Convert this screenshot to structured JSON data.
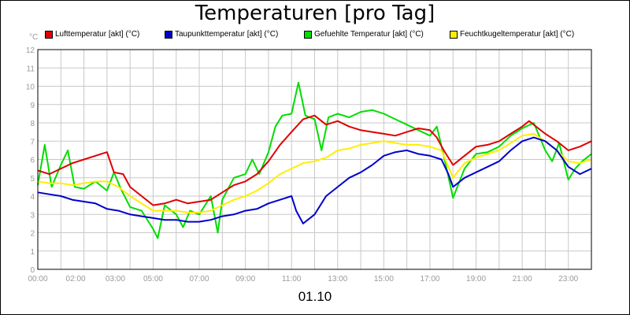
{
  "chart_data": {
    "type": "line",
    "title": "Temperaturen [pro Tag]",
    "unit": "°C",
    "xlabel": "01.10",
    "ylim": [
      0,
      12
    ],
    "y_ticks": [
      0,
      1,
      2,
      3,
      4,
      5,
      6,
      7,
      8,
      9,
      10,
      11,
      12
    ],
    "x_ticks": [
      "00:00",
      "02:00",
      "03:00",
      "05:00",
      "07:00",
      "09:00",
      "11:00",
      "13:00",
      "15:00",
      "17:00",
      "19:00",
      "21:00",
      "23:00"
    ],
    "x_tick_hours": [
      0,
      2,
      3,
      5,
      7,
      9,
      11,
      13,
      15,
      17,
      19,
      21,
      23
    ],
    "x_range_hours": [
      0,
      24
    ],
    "grid": true,
    "legend_position": "top",
    "series": [
      {
        "name": "Lufttemperatur [akt] (°C)",
        "color": "#e00000",
        "points": [
          [
            0,
            5.4
          ],
          [
            0.5,
            5.2
          ],
          [
            1,
            5.5
          ],
          [
            1.5,
            5.8
          ],
          [
            2,
            6.0
          ],
          [
            2.5,
            6.2
          ],
          [
            3,
            6.4
          ],
          [
            3.3,
            5.3
          ],
          [
            3.7,
            5.2
          ],
          [
            4,
            4.5
          ],
          [
            4.5,
            4.0
          ],
          [
            5,
            3.5
          ],
          [
            5.5,
            3.6
          ],
          [
            6,
            3.8
          ],
          [
            6.5,
            3.6
          ],
          [
            7,
            3.7
          ],
          [
            7.5,
            3.8
          ],
          [
            8,
            4.2
          ],
          [
            8.5,
            4.6
          ],
          [
            9,
            4.8
          ],
          [
            9.5,
            5.2
          ],
          [
            10,
            5.9
          ],
          [
            10.5,
            6.8
          ],
          [
            11,
            7.5
          ],
          [
            11.5,
            8.2
          ],
          [
            12,
            8.4
          ],
          [
            12.5,
            7.9
          ],
          [
            13,
            8.1
          ],
          [
            13.5,
            7.8
          ],
          [
            14,
            7.6
          ],
          [
            14.5,
            7.5
          ],
          [
            15,
            7.4
          ],
          [
            15.5,
            7.3
          ],
          [
            16,
            7.5
          ],
          [
            16.5,
            7.7
          ],
          [
            17,
            7.6
          ],
          [
            17.3,
            7.2
          ],
          [
            17.6,
            6.5
          ],
          [
            18,
            5.7
          ],
          [
            18.5,
            6.2
          ],
          [
            19,
            6.7
          ],
          [
            19.5,
            6.8
          ],
          [
            20,
            7.0
          ],
          [
            20.5,
            7.4
          ],
          [
            21,
            7.8
          ],
          [
            21.3,
            8.1
          ],
          [
            21.7,
            7.7
          ],
          [
            22,
            7.4
          ],
          [
            22.5,
            7.0
          ],
          [
            23,
            6.5
          ],
          [
            23.5,
            6.7
          ],
          [
            24,
            7.0
          ]
        ]
      },
      {
        "name": "Taupunkttemperatur [akt] (°C)",
        "color": "#0000cc",
        "points": [
          [
            0,
            4.2
          ],
          [
            0.5,
            4.1
          ],
          [
            1,
            4.0
          ],
          [
            1.5,
            3.8
          ],
          [
            2,
            3.7
          ],
          [
            2.5,
            3.6
          ],
          [
            3,
            3.3
          ],
          [
            3.5,
            3.2
          ],
          [
            4,
            3.0
          ],
          [
            4.5,
            2.9
          ],
          [
            5,
            2.8
          ],
          [
            5.5,
            2.7
          ],
          [
            6,
            2.7
          ],
          [
            6.5,
            2.6
          ],
          [
            7,
            2.6
          ],
          [
            7.5,
            2.7
          ],
          [
            8,
            2.9
          ],
          [
            8.5,
            3.0
          ],
          [
            9,
            3.2
          ],
          [
            9.5,
            3.3
          ],
          [
            10,
            3.6
          ],
          [
            10.5,
            3.8
          ],
          [
            11,
            4.0
          ],
          [
            11.2,
            3.2
          ],
          [
            11.5,
            2.5
          ],
          [
            12,
            3.0
          ],
          [
            12.5,
            4.0
          ],
          [
            13,
            4.5
          ],
          [
            13.5,
            5.0
          ],
          [
            14,
            5.3
          ],
          [
            14.5,
            5.7
          ],
          [
            15,
            6.2
          ],
          [
            15.5,
            6.4
          ],
          [
            16,
            6.5
          ],
          [
            16.5,
            6.3
          ],
          [
            17,
            6.2
          ],
          [
            17.5,
            6.0
          ],
          [
            17.8,
            5.2
          ],
          [
            18,
            4.5
          ],
          [
            18.5,
            5.0
          ],
          [
            19,
            5.3
          ],
          [
            19.5,
            5.6
          ],
          [
            20,
            5.9
          ],
          [
            20.5,
            6.5
          ],
          [
            21,
            7.0
          ],
          [
            21.5,
            7.2
          ],
          [
            22,
            7.0
          ],
          [
            22.5,
            6.5
          ],
          [
            23,
            5.6
          ],
          [
            23.5,
            5.2
          ],
          [
            24,
            5.5
          ]
        ]
      },
      {
        "name": "Gefuehlte Temperatur [akt] (°C)",
        "color": "#00dd00",
        "points": [
          [
            0,
            4.6
          ],
          [
            0.3,
            6.8
          ],
          [
            0.6,
            4.5
          ],
          [
            1,
            5.7
          ],
          [
            1.3,
            6.5
          ],
          [
            1.6,
            4.5
          ],
          [
            2,
            4.4
          ],
          [
            2.5,
            4.8
          ],
          [
            3,
            4.3
          ],
          [
            3.3,
            5.3
          ],
          [
            3.6,
            4.4
          ],
          [
            4,
            3.4
          ],
          [
            4.5,
            3.2
          ],
          [
            5,
            2.2
          ],
          [
            5.2,
            1.7
          ],
          [
            5.5,
            3.5
          ],
          [
            6,
            3.0
          ],
          [
            6.3,
            2.3
          ],
          [
            6.6,
            3.2
          ],
          [
            7,
            3.0
          ],
          [
            7.5,
            4.0
          ],
          [
            7.8,
            2.0
          ],
          [
            8,
            3.8
          ],
          [
            8.5,
            5.0
          ],
          [
            9,
            5.2
          ],
          [
            9.3,
            6.0
          ],
          [
            9.6,
            5.2
          ],
          [
            10,
            6.4
          ],
          [
            10.3,
            7.8
          ],
          [
            10.6,
            8.4
          ],
          [
            11,
            8.5
          ],
          [
            11.3,
            10.2
          ],
          [
            11.6,
            8.4
          ],
          [
            12,
            8.2
          ],
          [
            12.3,
            6.5
          ],
          [
            12.6,
            8.3
          ],
          [
            13,
            8.5
          ],
          [
            13.5,
            8.3
          ],
          [
            14,
            8.6
          ],
          [
            14.5,
            8.7
          ],
          [
            15,
            8.5
          ],
          [
            15.5,
            8.2
          ],
          [
            16,
            7.9
          ],
          [
            16.5,
            7.6
          ],
          [
            17,
            7.3
          ],
          [
            17.3,
            7.8
          ],
          [
            17.6,
            6.2
          ],
          [
            18,
            3.9
          ],
          [
            18.5,
            5.5
          ],
          [
            19,
            6.3
          ],
          [
            19.5,
            6.4
          ],
          [
            20,
            6.7
          ],
          [
            20.5,
            7.3
          ],
          [
            21,
            7.7
          ],
          [
            21.5,
            8.0
          ],
          [
            22,
            6.5
          ],
          [
            22.3,
            5.9
          ],
          [
            22.6,
            6.9
          ],
          [
            23,
            4.9
          ],
          [
            23.3,
            5.5
          ],
          [
            23.6,
            5.9
          ],
          [
            24,
            6.3
          ]
        ]
      },
      {
        "name": "Feuchtkugeltemperatur [akt] (°C)",
        "color": "#ffee00",
        "points": [
          [
            0,
            4.8
          ],
          [
            0.5,
            4.7
          ],
          [
            1,
            4.7
          ],
          [
            1.5,
            4.6
          ],
          [
            2,
            4.7
          ],
          [
            2.5,
            4.8
          ],
          [
            3,
            4.8
          ],
          [
            3.5,
            4.5
          ],
          [
            4,
            4.0
          ],
          [
            4.5,
            3.6
          ],
          [
            5,
            3.2
          ],
          [
            5.5,
            3.2
          ],
          [
            6,
            3.2
          ],
          [
            6.5,
            3.1
          ],
          [
            7,
            3.1
          ],
          [
            7.5,
            3.2
          ],
          [
            8,
            3.5
          ],
          [
            8.5,
            3.8
          ],
          [
            9,
            4.0
          ],
          [
            9.5,
            4.3
          ],
          [
            10,
            4.7
          ],
          [
            10.5,
            5.2
          ],
          [
            11,
            5.5
          ],
          [
            11.5,
            5.8
          ],
          [
            12,
            5.9
          ],
          [
            12.5,
            6.1
          ],
          [
            13,
            6.5
          ],
          [
            13.5,
            6.6
          ],
          [
            14,
            6.8
          ],
          [
            14.5,
            6.9
          ],
          [
            15,
            7.0
          ],
          [
            15.5,
            6.9
          ],
          [
            16,
            6.8
          ],
          [
            16.5,
            6.8
          ],
          [
            17,
            6.7
          ],
          [
            17.5,
            6.5
          ],
          [
            18,
            5.0
          ],
          [
            18.5,
            5.8
          ],
          [
            19,
            6.1
          ],
          [
            19.5,
            6.3
          ],
          [
            20,
            6.5
          ],
          [
            20.5,
            6.9
          ],
          [
            21,
            7.3
          ],
          [
            21.5,
            7.4
          ],
          [
            22,
            7.0
          ],
          [
            22.5,
            6.5
          ],
          [
            23,
            5.9
          ],
          [
            23.5,
            5.8
          ],
          [
            24,
            6.0
          ]
        ]
      }
    ]
  }
}
